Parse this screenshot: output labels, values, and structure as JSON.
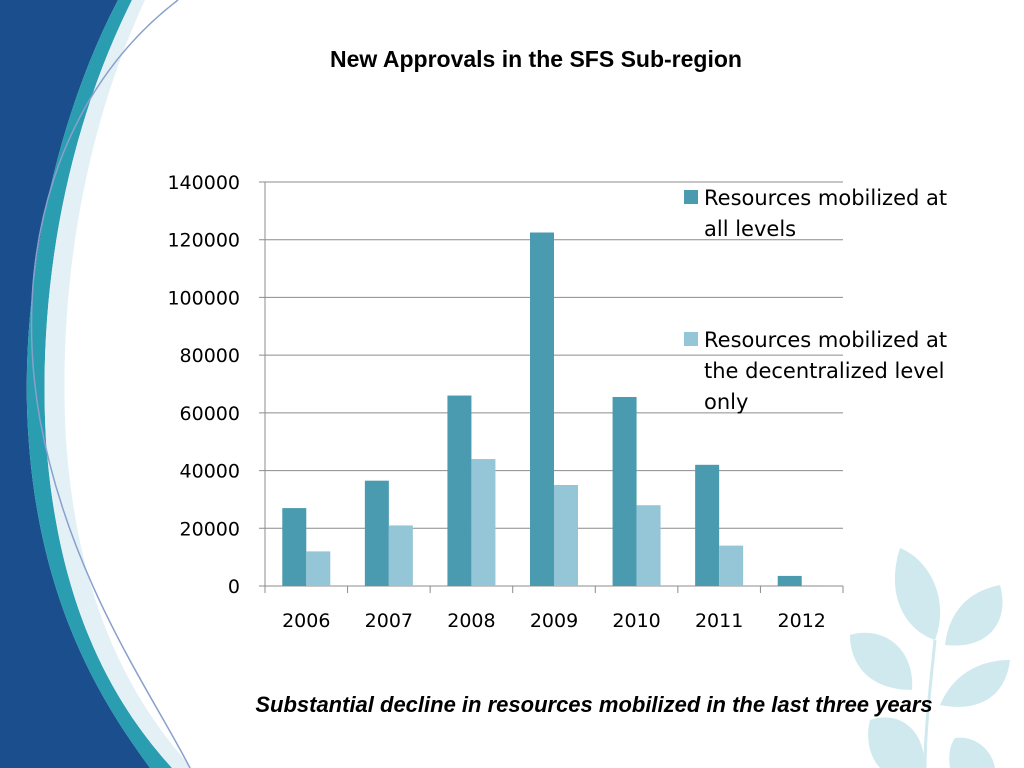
{
  "slide": {
    "title": "New Approvals in the SFS Sub-region",
    "caption": "Substantial decline in resources mobilized in the last three years"
  },
  "colors": {
    "series_all": "#4a9bb0",
    "series_decentralized": "#95c6d8",
    "sidebar_dark": "#1a4e8c",
    "sidebar_teal": "#2a9db0",
    "leaf": "#cfe9ef",
    "grid": "#8c8c8c"
  },
  "chart_data": {
    "type": "bar",
    "categories": [
      "2006",
      "2007",
      "2008",
      "2009",
      "2010",
      "2011",
      "2012"
    ],
    "series": [
      {
        "name": "Resources mobilized at all levels",
        "legend_lines": [
          "Resources mobilized at",
          "all levels"
        ],
        "values": [
          27000,
          36500,
          66000,
          122500,
          65500,
          42000,
          3500
        ]
      },
      {
        "name": "Resources mobilized at the decentralized level only",
        "legend_lines": [
          "Resources mobilized at",
          "the decentralized level",
          "only"
        ],
        "values": [
          12000,
          21000,
          44000,
          35000,
          28000,
          14000,
          300
        ]
      }
    ],
    "yticks": [
      "140000",
      "120000",
      "100000",
      "80000",
      "60000",
      "40000",
      "20000",
      "0"
    ],
    "ylim": [
      0,
      140000
    ],
    "grid": true,
    "legend_position": "right"
  }
}
